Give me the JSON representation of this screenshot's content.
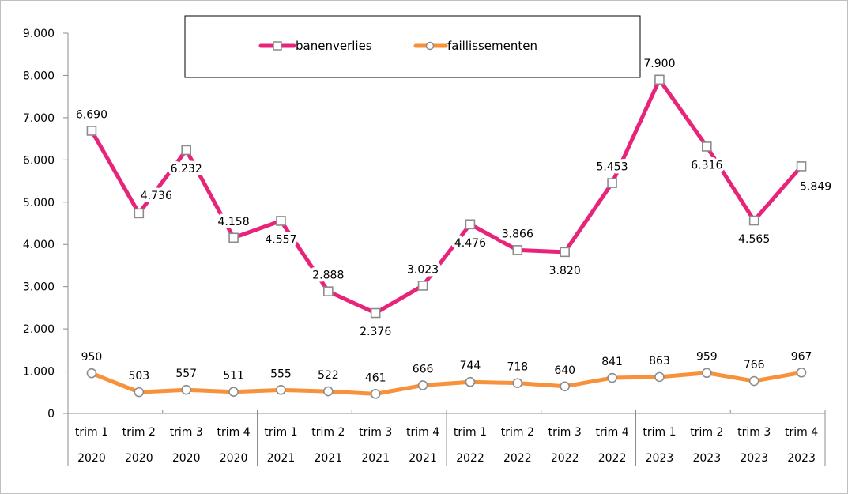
{
  "chart_data": {
    "type": "line",
    "title": "",
    "xlabel": "",
    "ylabel": "",
    "ylim": [
      0,
      9000
    ],
    "y_ticks": [
      0,
      1000,
      2000,
      3000,
      4000,
      5000,
      6000,
      7000,
      8000,
      9000
    ],
    "y_tick_labels": [
      "0",
      "1.000",
      "2.000",
      "3.000",
      "4.000",
      "5.000",
      "6.000",
      "7.000",
      "8.000",
      "9.000"
    ],
    "grid": false,
    "legend": {
      "placement": "top-center",
      "boxed": true
    },
    "categories": [
      {
        "quarter": "trim  1",
        "year": "2020"
      },
      {
        "quarter": "trim  2",
        "year": "2020"
      },
      {
        "quarter": "trim  3",
        "year": "2020"
      },
      {
        "quarter": "trim  4",
        "year": "2020"
      },
      {
        "quarter": "trim  1",
        "year": "2021"
      },
      {
        "quarter": "trim  2",
        "year": "2021"
      },
      {
        "quarter": "trim  3",
        "year": "2021"
      },
      {
        "quarter": "trim  4",
        "year": "2021"
      },
      {
        "quarter": "trim  1",
        "year": "2022"
      },
      {
        "quarter": "trim  2",
        "year": "2022"
      },
      {
        "quarter": "trim  3",
        "year": "2022"
      },
      {
        "quarter": "trim  4",
        "year": "2022"
      },
      {
        "quarter": "trim  1",
        "year": "2023"
      },
      {
        "quarter": "trim  2",
        "year": "2023"
      },
      {
        "quarter": "trim  3",
        "year": "2023"
      },
      {
        "quarter": "trim  4",
        "year": "2023"
      }
    ],
    "series": [
      {
        "name": "banenverlies",
        "color": "#e8237a",
        "marker": "square",
        "values": [
          6690,
          4736,
          6232,
          4158,
          4557,
          2888,
          2376,
          3023,
          4476,
          3866,
          3820,
          5453,
          7900,
          6316,
          4565,
          5849
        ],
        "labels": [
          "6.690",
          "4.736",
          "6.232",
          "4.158",
          "4.557",
          "2.888",
          "2.376",
          "3.023",
          "4.476",
          "3.866",
          "3.820",
          "5.453",
          "7.900",
          "6.316",
          "4.565",
          "5.849"
        ],
        "label_pos": [
          "above",
          "right",
          "below",
          "above",
          "below",
          "above",
          "below",
          "above",
          "below",
          "above",
          "below",
          "above",
          "above",
          "below",
          "below",
          "below-right"
        ]
      },
      {
        "name": "faillissementen",
        "color": "#f7913a",
        "marker": "circle",
        "values": [
          950,
          503,
          557,
          511,
          555,
          522,
          461,
          666,
          744,
          718,
          640,
          841,
          863,
          959,
          766,
          967
        ],
        "labels": [
          "950",
          "503",
          "557",
          "511",
          "555",
          "522",
          "461",
          "666",
          "744",
          "718",
          "640",
          "841",
          "863",
          "959",
          "766",
          "967"
        ],
        "label_pos": [
          "above",
          "above",
          "above",
          "above",
          "above",
          "above",
          "above",
          "above",
          "above",
          "above",
          "above",
          "above",
          "above",
          "above",
          "above",
          "above"
        ]
      }
    ],
    "marker_edge_color": "#8c8c8c"
  }
}
